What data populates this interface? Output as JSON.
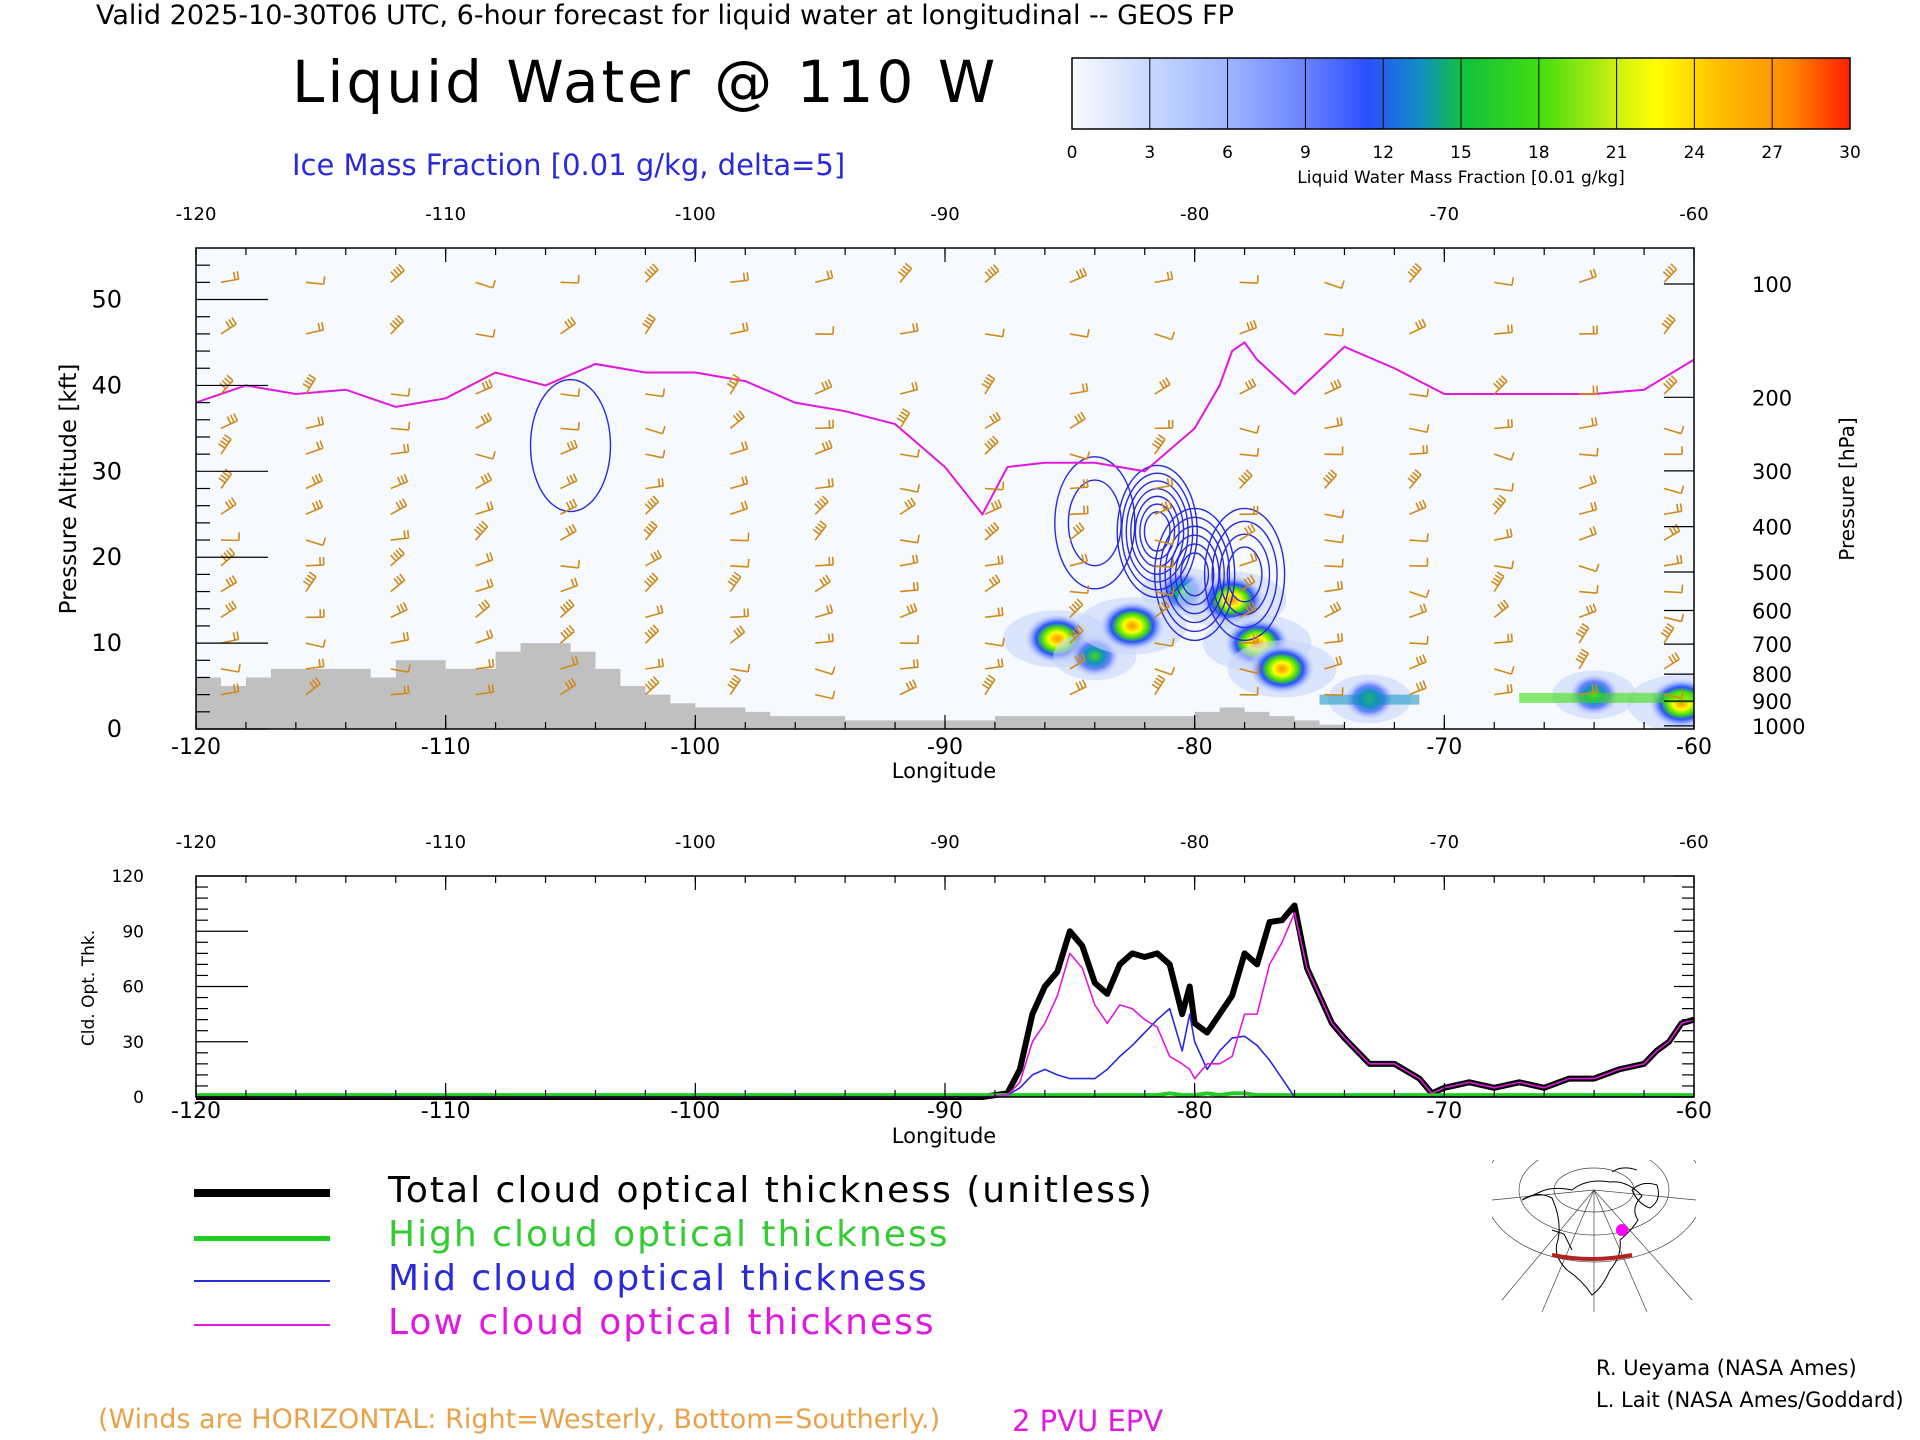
{
  "header": {
    "valid_line": "Valid 2025-10-30T06 UTC, 6-hour forecast for liquid water at longitudinal -- GEOS FP",
    "main_title": "Liquid Water @ 110 W",
    "ice_subtitle": "Ice Mass Fraction [0.01 g/kg, delta=5]"
  },
  "colorbar": {
    "ticks": [
      "0",
      "3",
      "6",
      "9",
      "12",
      "15",
      "18",
      "21",
      "24",
      "27",
      "30"
    ],
    "label": "Liquid Water Mass Fraction [0.01 g/kg]"
  },
  "colors": {
    "wind": "#d08a1a",
    "epv": "#e018e0",
    "ice": "#2a2ad8",
    "terrain": "#c0c0c0",
    "total": "#000000",
    "high": "#22cc22",
    "mid": "#2a2ad8",
    "low": "#e018e0"
  },
  "chart_data": [
    {
      "type": "heatmap",
      "title": "Liquid Water @ 110 W",
      "xlabel": "Longitude",
      "ylabel": "Pressure Altitude [kft]",
      "ylabel_right": "Pressure [hPa]",
      "x_ticks": [
        "-120",
        "-110",
        "-100",
        "-90",
        "-80",
        "-70",
        "-60"
      ],
      "x_top_ticks": [
        "-120",
        "-110",
        "-100",
        "-90",
        "-80",
        "-70",
        "-60"
      ],
      "y_ticks": [
        "0",
        "10",
        "20",
        "30",
        "40",
        "50"
      ],
      "pressure_ticks": [
        "100",
        "200",
        "300",
        "400",
        "500",
        "600",
        "700",
        "800",
        "900",
        "1000"
      ],
      "xlim": [
        -120,
        -60
      ],
      "ylim": [
        0,
        56
      ],
      "terrain_kft": {
        "lon": [
          -120,
          -119,
          -118,
          -117,
          -116,
          -115,
          -114,
          -113,
          -112,
          -111,
          -110,
          -109,
          -108,
          -107,
          -106,
          -105,
          -104,
          -103,
          -102,
          -101,
          -100,
          -99,
          -98,
          -97,
          -96,
          -95,
          -94,
          -93,
          -92,
          -91,
          -90,
          -89,
          -88,
          -87,
          -86,
          -85,
          -84,
          -83,
          -82,
          -81,
          -80,
          -79,
          -78,
          -77,
          -76,
          -75
        ],
        "alt": [
          6,
          5,
          6,
          7,
          7,
          7,
          7,
          6,
          8,
          8,
          7,
          7,
          9,
          10,
          10,
          9,
          7,
          5,
          4,
          3,
          2.5,
          2.5,
          2,
          1.5,
          1.5,
          1.5,
          1,
          1,
          1,
          1,
          1,
          1,
          1.5,
          1.5,
          1.5,
          1.5,
          1.5,
          1.5,
          1.5,
          1.5,
          2,
          2.5,
          2,
          1.5,
          1,
          0.5
        ]
      },
      "epv_2pvu_kft": {
        "lon": [
          -120,
          -118,
          -116,
          -114,
          -112,
          -110,
          -108,
          -106,
          -104,
          -102,
          -100,
          -98,
          -96,
          -94,
          -92,
          -90,
          -88.5,
          -87.5,
          -86,
          -84,
          -82,
          -80,
          -79,
          -78.5,
          -78,
          -77.5,
          -76,
          -74,
          -72,
          -70,
          -68,
          -66,
          -64,
          -62,
          -60
        ],
        "alt": [
          38,
          40,
          39,
          39.5,
          37.5,
          38.5,
          41.5,
          40,
          42.5,
          41.5,
          41.5,
          40.5,
          38,
          37,
          35.5,
          30.5,
          25,
          30.5,
          31,
          31,
          30,
          35,
          40,
          44,
          45,
          43,
          39,
          44.5,
          42,
          39,
          39,
          39,
          39,
          39.5,
          43
        ]
      },
      "liquid_water_features": [
        {
          "lon": -85.5,
          "alt_kft": 10.5,
          "max": 24
        },
        {
          "lon": -84,
          "alt_kft": 8.5,
          "max": 21
        },
        {
          "lon": -82.5,
          "alt_kft": 12,
          "max": 24
        },
        {
          "lon": -80.5,
          "alt_kft": 16,
          "max": 18
        },
        {
          "lon": -78.5,
          "alt_kft": 15,
          "max": 24
        },
        {
          "lon": -77.5,
          "alt_kft": 10,
          "max": 30
        },
        {
          "lon": -76.5,
          "alt_kft": 7,
          "max": 30
        },
        {
          "lon": -73,
          "alt_kft": 3.5,
          "max": 21
        },
        {
          "lon": -64,
          "alt_kft": 4,
          "max": 21
        },
        {
          "lon": -60.5,
          "alt_kft": 3,
          "max": 30
        }
      ],
      "ice_contour_features": [
        {
          "lon": -81.5,
          "alt_kft": 23,
          "levels": 7
        },
        {
          "lon": -80,
          "alt_kft": 18,
          "levels": 6
        },
        {
          "lon": -78,
          "alt_kft": 18,
          "levels": 4
        },
        {
          "lon": -84,
          "alt_kft": 24,
          "levels": 2
        },
        {
          "lon": -105,
          "alt_kft": 33,
          "levels": 1
        }
      ]
    },
    {
      "type": "line",
      "xlabel": "Longitude",
      "ylabel": "Cld. Opt. Thk.",
      "x_ticks": [
        "-120",
        "-110",
        "-100",
        "-90",
        "-80",
        "-70",
        "-60"
      ],
      "x_top_ticks": [
        "-120",
        "-110",
        "-100",
        "-90",
        "-80",
        "-70",
        "-60"
      ],
      "y_ticks": [
        "0",
        "30",
        "60",
        "90",
        "120"
      ],
      "xlim": [
        -120,
        -60
      ],
      "ylim": [
        0,
        120
      ],
      "x": [
        -120,
        -110,
        -100,
        -90,
        -88.5,
        -87.5,
        -87,
        -86.5,
        -86,
        -85.5,
        -85,
        -84.5,
        -84,
        -83.5,
        -83,
        -82.5,
        -82,
        -81.5,
        -81,
        -80.5,
        -80.2,
        -80,
        -79.5,
        -79,
        -78.5,
        -78,
        -77.5,
        -77,
        -76.5,
        -76,
        -75.5,
        -75,
        -74.5,
        -74,
        -73.5,
        -73,
        -72,
        -71,
        -70.5,
        -70,
        -69,
        -68,
        -67,
        -66,
        -65,
        -64,
        -63,
        -62,
        -61.5,
        -61,
        -60.5,
        -60
      ],
      "series": [
        {
          "name": "Total cloud optical thickness (unitless)",
          "values": [
            0,
            0,
            0,
            0,
            0,
            2,
            15,
            45,
            60,
            68,
            90,
            82,
            62,
            56,
            72,
            78,
            76,
            78,
            72,
            45,
            60,
            40,
            35,
            45,
            55,
            78,
            72,
            95,
            96,
            104,
            70,
            55,
            40,
            32,
            25,
            18,
            18,
            10,
            2,
            5,
            8,
            5,
            8,
            5,
            10,
            10,
            15,
            18,
            25,
            30,
            40,
            42
          ]
        },
        {
          "name": "High cloud optical thickness",
          "values": [
            1,
            1,
            1,
            1,
            1,
            1,
            1,
            1,
            1,
            1,
            1,
            1,
            1,
            1,
            1,
            1,
            1,
            1,
            2,
            1,
            1,
            1,
            2,
            1,
            2,
            2,
            1,
            1,
            1,
            1,
            1,
            1,
            1,
            1,
            1,
            1,
            1,
            1,
            1,
            1,
            1,
            1,
            1,
            1,
            1,
            1,
            1,
            1,
            1,
            1,
            1,
            1
          ]
        },
        {
          "name": "Mid cloud optical thickness",
          "values": [
            0,
            0,
            0,
            0,
            0,
            1,
            5,
            12,
            15,
            12,
            10,
            10,
            10,
            15,
            22,
            28,
            35,
            42,
            48,
            25,
            45,
            30,
            15,
            25,
            32,
            33,
            28,
            20,
            10,
            0,
            0,
            0,
            0,
            0,
            0,
            0,
            0,
            0,
            0,
            0,
            0,
            0,
            0,
            0,
            0,
            0,
            0,
            0,
            0,
            0,
            0,
            0
          ]
        },
        {
          "name": "Low cloud optical thickness",
          "values": [
            0,
            0,
            0,
            0,
            0,
            1,
            8,
            30,
            40,
            55,
            78,
            70,
            50,
            40,
            50,
            48,
            42,
            38,
            22,
            18,
            15,
            10,
            18,
            18,
            22,
            45,
            45,
            72,
            84,
            100,
            70,
            55,
            40,
            32,
            25,
            18,
            18,
            10,
            2,
            5,
            8,
            5,
            8,
            5,
            10,
            10,
            15,
            18,
            25,
            30,
            40,
            42
          ]
        }
      ]
    }
  ],
  "legend": {
    "total": "Total cloud optical thickness (unitless)",
    "high": "High cloud optical thickness",
    "mid": "Mid cloud optical thickness",
    "low": "Low cloud optical thickness"
  },
  "footer": {
    "winds_note": "(Winds are HORIZONTAL: Right=Westerly, Bottom=Southerly.)",
    "pvu_note": "2 PVU EPV",
    "credit_1": "R. Ueyama (NASA Ames)",
    "credit_2": "L. Lait (NASA Ames/Goddard)"
  }
}
